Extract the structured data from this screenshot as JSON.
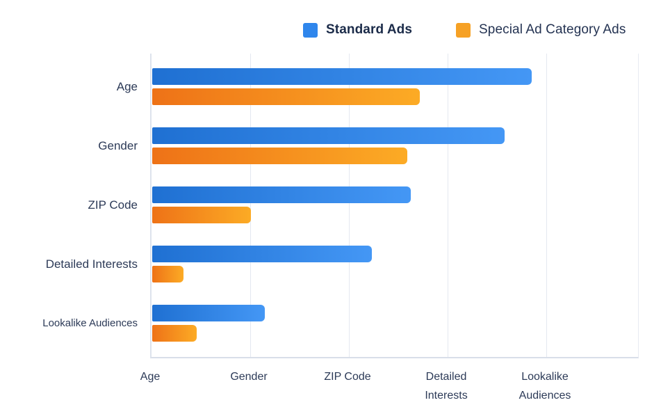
{
  "chart_data": {
    "type": "bar",
    "orientation": "horizontal",
    "title": "",
    "categories": [
      "Age",
      "Gender",
      "ZIP Code",
      "Detailed Interests",
      "Lookalike Audiences"
    ],
    "x_tick_labels": [
      "Age",
      "Gender",
      "ZIP Code",
      "Detailed\nInterests",
      "Lookalike\nAudiences"
    ],
    "series": [
      {
        "name": "Standard Ads",
        "legend_color": "#2f86ec",
        "gradient": [
          "#1f70d2",
          "#4497f5"
        ],
        "values_pct_of_axis": [
          78.1,
          72.5,
          53.2,
          45.2,
          23.2
        ]
      },
      {
        "name": "Special Ad Category Ads",
        "legend_color": "#f6a125",
        "gradient": [
          "#ee7217",
          "#fcab25"
        ],
        "values_pct_of_axis": [
          55.1,
          52.5,
          20.3,
          6.5,
          9.1
        ]
      }
    ],
    "axis": {
      "min_pct": 0,
      "max_pct": 100,
      "gridlines_pct": [
        0,
        20.2,
        40.4,
        60.6,
        80.8,
        100
      ],
      "grid_visible": true
    },
    "legend_position": "top-right"
  },
  "colors": {
    "background": "#ffffff",
    "grid": "#e4e8f0",
    "axis_line": "#d8dee9",
    "label_text": "#2c3a57",
    "legend_text": "#1b2b49"
  }
}
